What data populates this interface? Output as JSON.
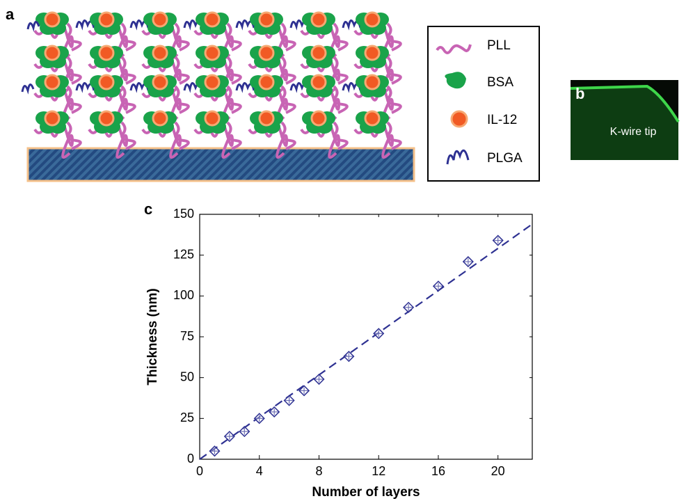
{
  "panels": {
    "a": "a",
    "b": "b",
    "c": "c"
  },
  "legend": [
    "PLL",
    "BSA",
    "IL-12",
    "PLGA"
  ],
  "image_label": "K-wire tip",
  "chart_data": {
    "type": "scatter",
    "x_label": "Number of layers",
    "y_label": "Thickness (nm)",
    "x": [
      1,
      2,
      3,
      4,
      5,
      6,
      7,
      8,
      10,
      12,
      14,
      16,
      18,
      20
    ],
    "values": [
      5,
      14,
      17,
      25,
      29,
      36,
      42,
      49,
      63,
      77,
      93,
      106,
      121,
      134
    ],
    "errors": [
      2,
      2,
      2,
      2,
      2,
      2,
      2,
      2,
      2,
      2,
      2,
      2,
      2,
      2
    ],
    "color": "#2e3192",
    "fit": {
      "x": [
        0,
        22.3
      ],
      "values": [
        0,
        144
      ]
    },
    "xlim": [
      0,
      22.3
    ],
    "xticks": [
      0,
      4,
      8,
      12,
      16,
      20
    ],
    "ylim": [
      0,
      150
    ],
    "yticks": [
      0,
      25,
      50,
      75,
      100,
      125,
      150
    ]
  }
}
